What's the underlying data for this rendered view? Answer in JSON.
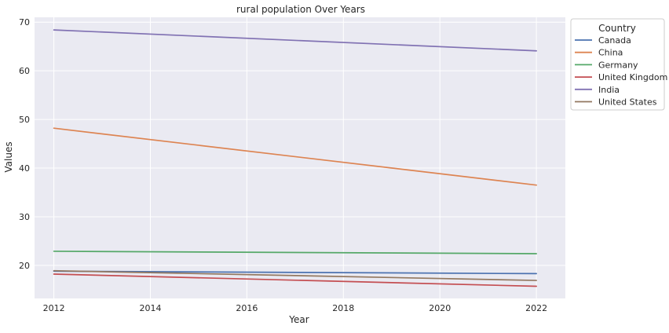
{
  "chart_data": {
    "type": "line",
    "title": "rural population Over Years",
    "xlabel": "Year",
    "ylabel": "Values",
    "x": [
      2012,
      2022
    ],
    "x_ticks": [
      2012,
      2014,
      2016,
      2018,
      2020,
      2022
    ],
    "y_ticks": [
      20,
      30,
      40,
      50,
      60,
      70
    ],
    "xlim": [
      2011.6,
      2022.6
    ],
    "ylim": [
      13.2,
      71
    ],
    "grid": true,
    "legend_title": "Country",
    "legend_position": "outside-top-right",
    "series": [
      {
        "name": "Canada",
        "color": "#4c72b0",
        "values": [
          18.8,
          18.3
        ]
      },
      {
        "name": "China",
        "color": "#dd8452",
        "values": [
          48.2,
          36.5
        ]
      },
      {
        "name": "Germany",
        "color": "#55a868",
        "values": [
          22.9,
          22.4
        ]
      },
      {
        "name": "United Kingdom",
        "color": "#c44e52",
        "values": [
          18.2,
          15.7
        ]
      },
      {
        "name": "India",
        "color": "#8172b3",
        "values": [
          68.4,
          64.1
        ]
      },
      {
        "name": "United States",
        "color": "#937860",
        "values": [
          18.9,
          16.9
        ]
      }
    ]
  },
  "style": {
    "plot_background": "#eaeaf2",
    "grid_color": "#ffffff",
    "legend_background": "#ffffff",
    "legend_border": "#cccccc"
  }
}
